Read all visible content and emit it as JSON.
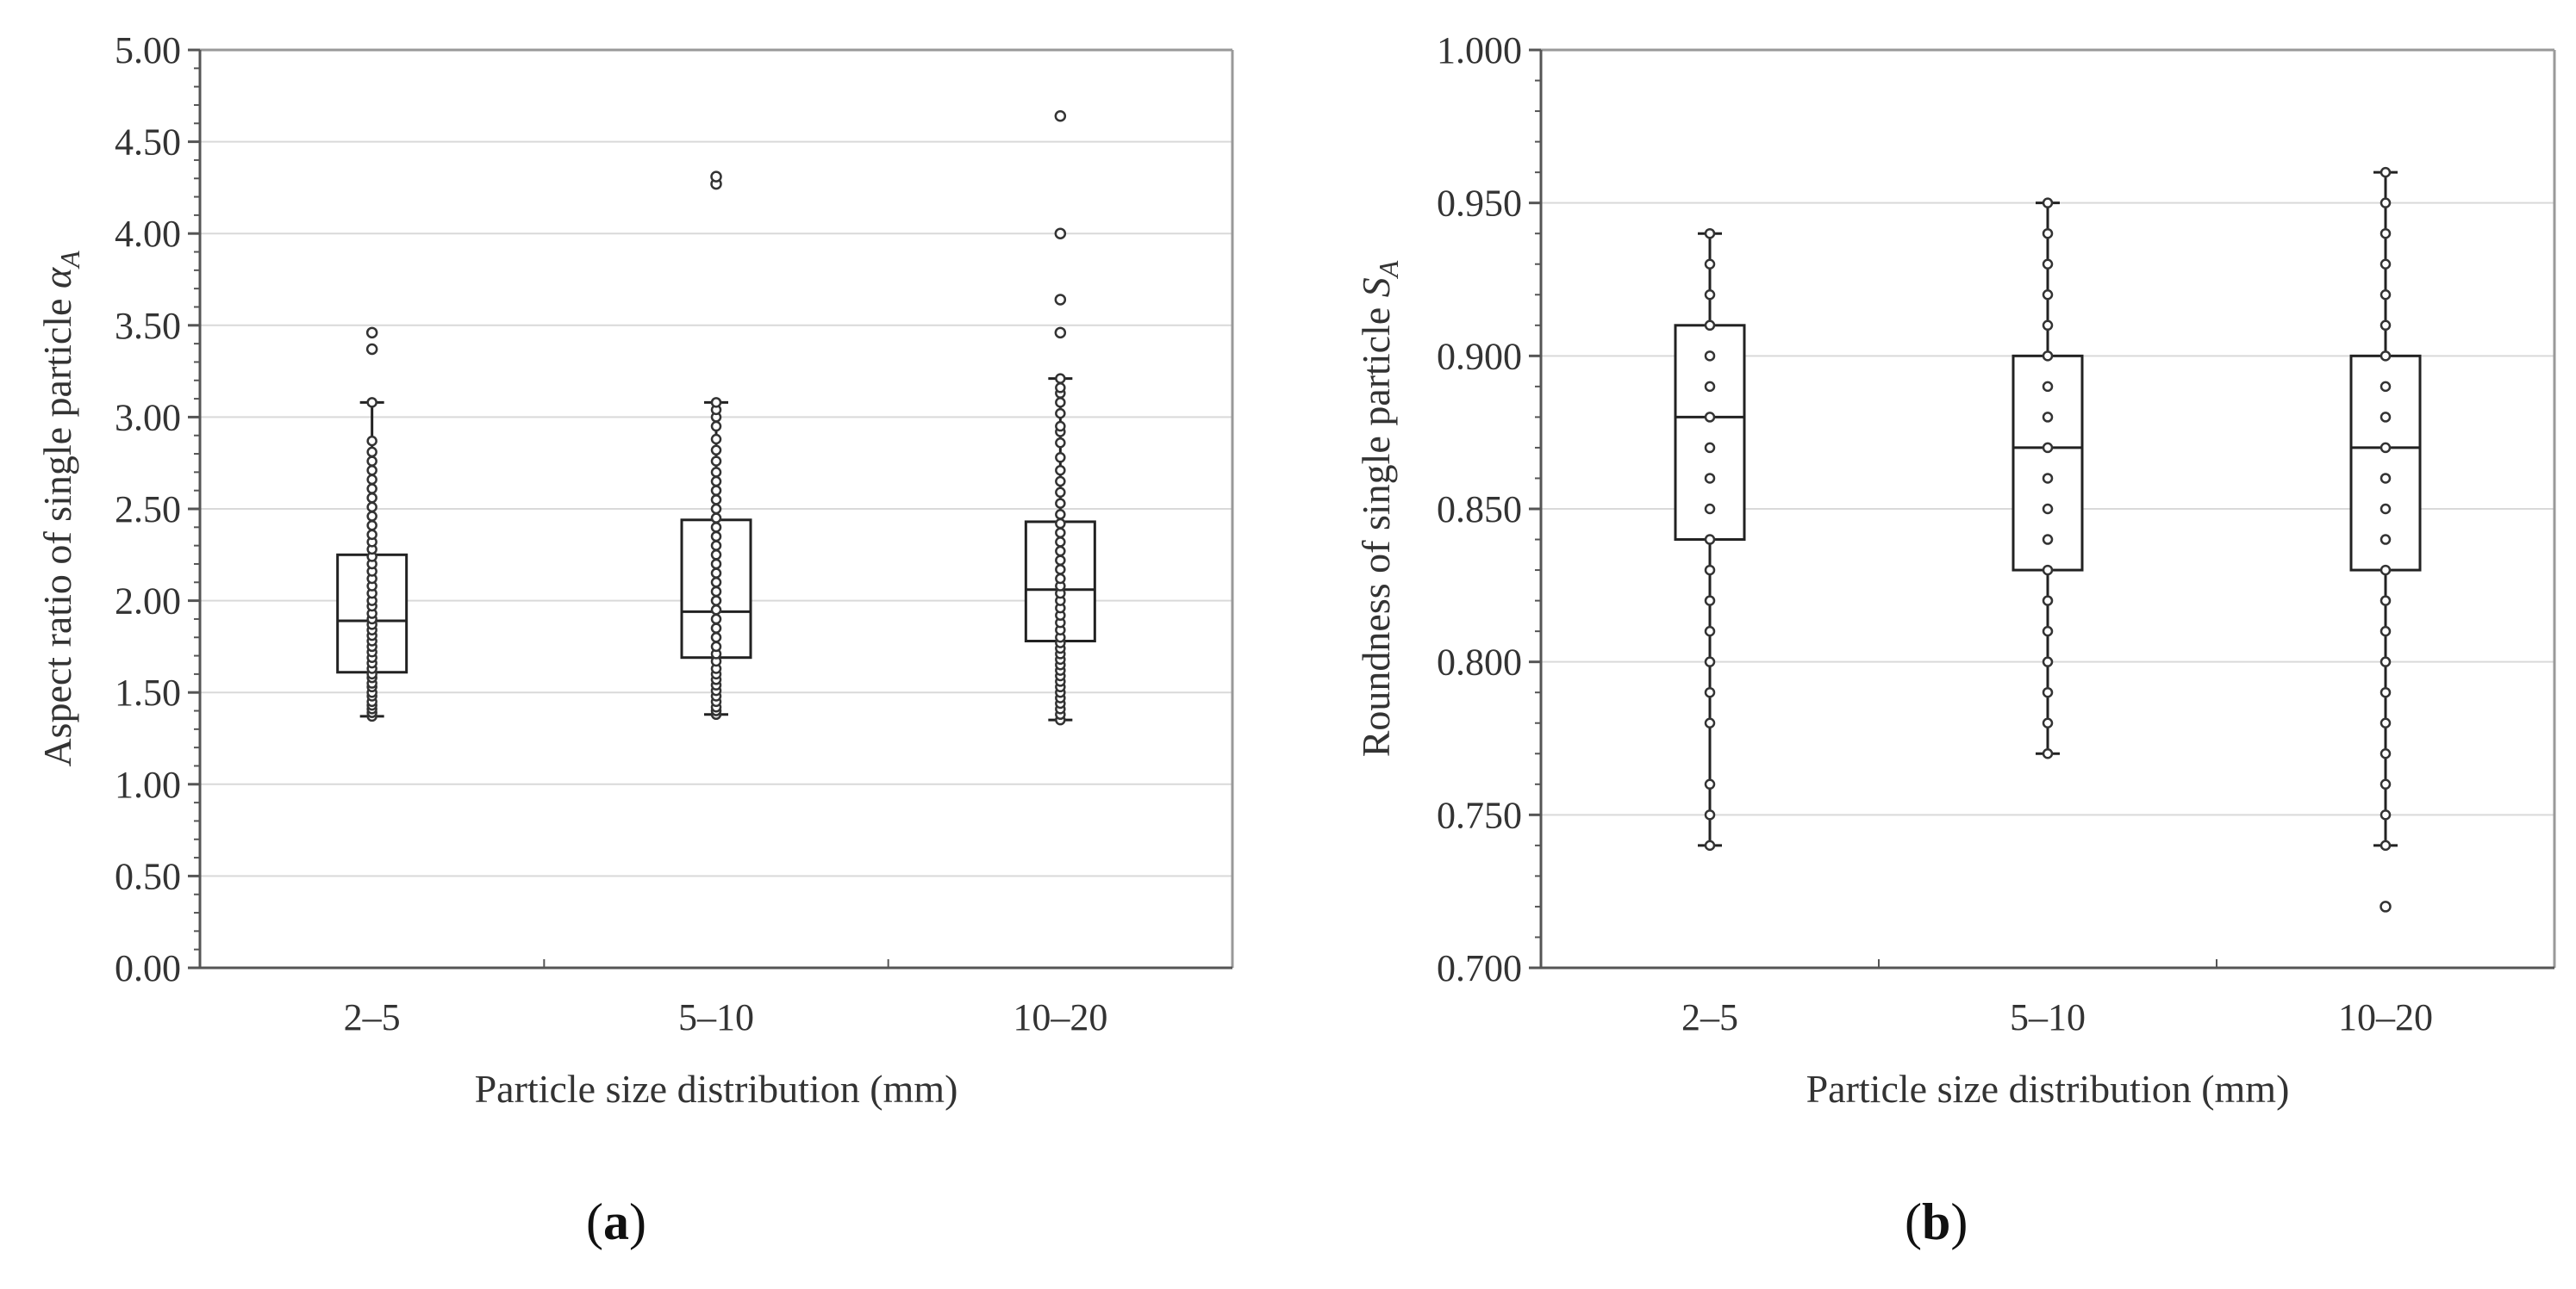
{
  "chart_data": [
    {
      "type": "box",
      "panel": "(a)",
      "panel_letter": "a",
      "title": "",
      "xlabel": "Particle size distribution (mm)",
      "ylabel": "Aspect ratio of single particle αA",
      "ylabel_main": "Aspect ratio of single particle ",
      "ylabel_symbol": "α",
      "ylabel_sub": "A",
      "ylim": [
        0.0,
        5.0
      ],
      "yticks": [
        "0.00",
        "0.50",
        "1.00",
        "1.50",
        "2.00",
        "2.50",
        "3.00",
        "3.50",
        "4.00",
        "4.50",
        "5.00"
      ],
      "ytick_values": [
        0.0,
        0.5,
        1.0,
        1.5,
        2.0,
        2.5,
        3.0,
        3.5,
        4.0,
        4.5,
        5.0
      ],
      "grid": true,
      "categories": [
        "2–5",
        "5–10",
        "10–20"
      ],
      "boxes": [
        {
          "category": "2–5",
          "min": 1.37,
          "q1": 1.61,
          "median": 1.89,
          "q3": 2.25,
          "max": 3.08,
          "points": [
            1.37,
            1.39,
            1.41,
            1.43,
            1.45,
            1.48,
            1.5,
            1.53,
            1.55,
            1.58,
            1.6,
            1.63,
            1.66,
            1.69,
            1.72,
            1.75,
            1.78,
            1.81,
            1.84,
            1.87,
            1.9,
            1.93,
            1.97,
            2.0,
            2.04,
            2.08,
            2.12,
            2.16,
            2.2,
            2.24,
            2.28,
            2.32,
            2.36,
            2.41,
            2.46,
            2.51,
            2.56,
            2.61,
            2.66,
            2.71,
            2.76,
            2.81,
            2.87,
            3.08
          ],
          "outliers": [
            3.37,
            3.46
          ]
        },
        {
          "category": "5–10",
          "min": 1.38,
          "q1": 1.69,
          "median": 1.94,
          "q3": 2.44,
          "max": 3.08,
          "points": [
            1.38,
            1.4,
            1.42,
            1.45,
            1.48,
            1.51,
            1.54,
            1.57,
            1.6,
            1.63,
            1.67,
            1.71,
            1.75,
            1.8,
            1.85,
            1.9,
            1.95,
            2.0,
            2.05,
            2.1,
            2.15,
            2.2,
            2.25,
            2.3,
            2.35,
            2.4,
            2.45,
            2.5,
            2.55,
            2.6,
            2.65,
            2.7,
            2.76,
            2.82,
            2.88,
            2.95,
            3.0,
            3.04,
            3.08
          ],
          "outliers": [
            4.27,
            4.31
          ]
        },
        {
          "category": "10–20",
          "min": 1.35,
          "q1": 1.78,
          "median": 2.06,
          "q3": 2.43,
          "max": 3.21,
          "points": [
            1.35,
            1.38,
            1.41,
            1.44,
            1.47,
            1.5,
            1.53,
            1.56,
            1.59,
            1.62,
            1.65,
            1.68,
            1.71,
            1.74,
            1.77,
            1.8,
            1.84,
            1.88,
            1.92,
            1.96,
            2.0,
            2.04,
            2.08,
            2.12,
            2.17,
            2.22,
            2.27,
            2.32,
            2.37,
            2.42,
            2.47,
            2.53,
            2.59,
            2.65,
            2.71,
            2.78,
            2.86,
            2.92,
            2.95,
            3.02,
            3.08,
            3.13,
            3.16,
            3.21
          ],
          "outliers": [
            3.46,
            3.64,
            4.0,
            4.64
          ]
        }
      ]
    },
    {
      "type": "box",
      "panel": "(b)",
      "panel_letter": "b",
      "title": "",
      "xlabel": "Particle size distribution (mm)",
      "ylabel": "Roundness of single particle SA",
      "ylabel_main": "Roundness of single particle ",
      "ylabel_symbol": "S",
      "ylabel_sub": "A",
      "ylim": [
        0.7,
        1.0
      ],
      "yticks": [
        "0.700",
        "0.750",
        "0.800",
        "0.850",
        "0.900",
        "0.950",
        "1.000"
      ],
      "ytick_values": [
        0.7,
        0.75,
        0.8,
        0.85,
        0.9,
        0.95,
        1.0
      ],
      "grid": true,
      "categories": [
        "2–5",
        "5–10",
        "10–20"
      ],
      "boxes": [
        {
          "category": "2–5",
          "min": 0.74,
          "q1": 0.84,
          "median": 0.88,
          "q3": 0.91,
          "max": 0.94,
          "points": [
            0.74,
            0.75,
            0.76,
            0.78,
            0.79,
            0.8,
            0.81,
            0.82,
            0.83,
            0.84,
            0.85,
            0.86,
            0.87,
            0.88,
            0.89,
            0.9,
            0.91,
            0.92,
            0.93,
            0.94
          ],
          "outliers": []
        },
        {
          "category": "5–10",
          "min": 0.77,
          "q1": 0.83,
          "median": 0.87,
          "q3": 0.9,
          "max": 0.95,
          "points": [
            0.77,
            0.78,
            0.79,
            0.8,
            0.81,
            0.82,
            0.83,
            0.84,
            0.85,
            0.86,
            0.87,
            0.88,
            0.89,
            0.9,
            0.91,
            0.92,
            0.93,
            0.94,
            0.95
          ],
          "outliers": []
        },
        {
          "category": "10–20",
          "min": 0.74,
          "q1": 0.83,
          "median": 0.87,
          "q3": 0.9,
          "max": 0.96,
          "points": [
            0.74,
            0.75,
            0.76,
            0.77,
            0.78,
            0.79,
            0.8,
            0.81,
            0.82,
            0.83,
            0.84,
            0.85,
            0.86,
            0.87,
            0.88,
            0.89,
            0.9,
            0.91,
            0.92,
            0.93,
            0.94,
            0.95,
            0.96
          ],
          "outliers": [
            0.72
          ]
        }
      ]
    }
  ]
}
